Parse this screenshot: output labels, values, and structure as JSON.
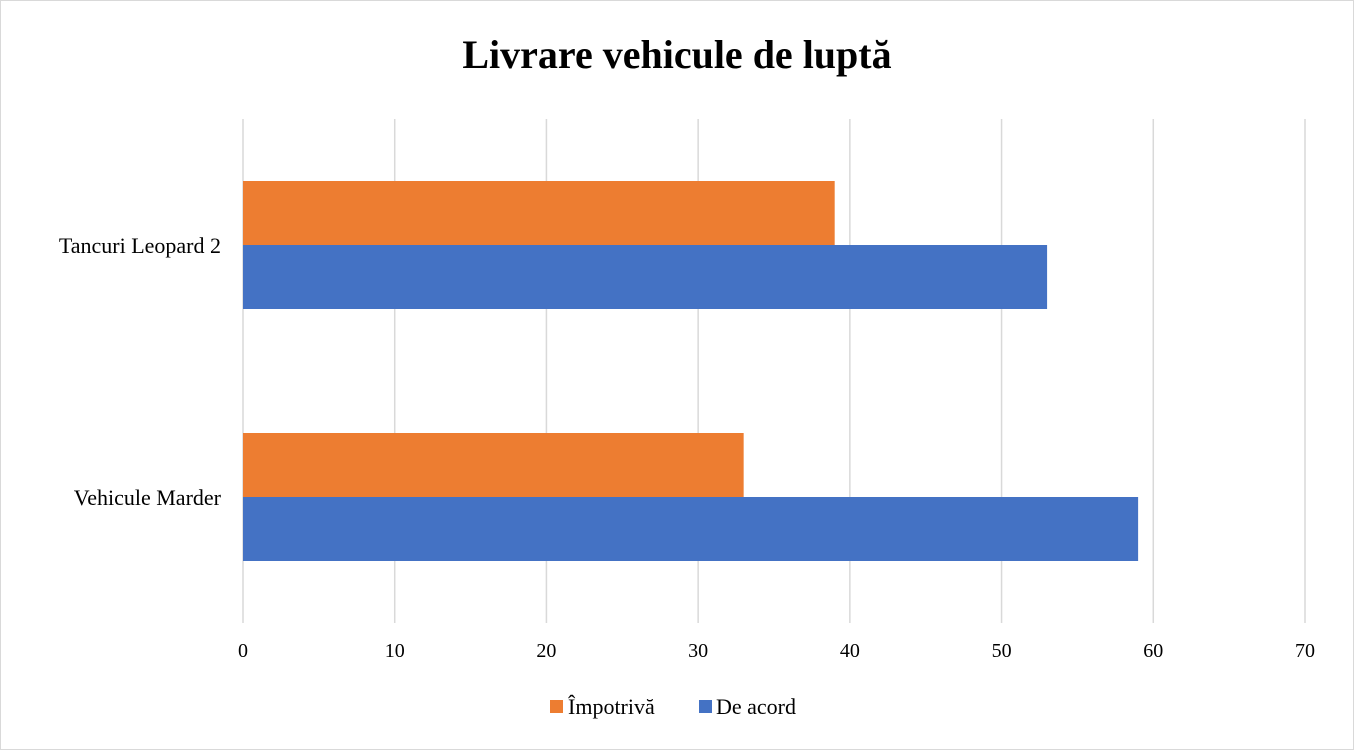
{
  "chart_data": {
    "type": "bar",
    "orientation": "horizontal",
    "title": "Livrare vehicule de luptă",
    "categories": [
      "Tancuri Leopard 2",
      "Vehicule Marder"
    ],
    "series": [
      {
        "name": "Împotrivă",
        "values": [
          39,
          33
        ],
        "color": "#ED7D31"
      },
      {
        "name": "De acord",
        "values": [
          53,
          59
        ],
        "color": "#4472C4"
      }
    ],
    "xlim": [
      0,
      70
    ],
    "xticks": [
      0,
      10,
      20,
      30,
      40,
      50,
      60,
      70
    ],
    "grid": true,
    "legend_position": "bottom"
  }
}
